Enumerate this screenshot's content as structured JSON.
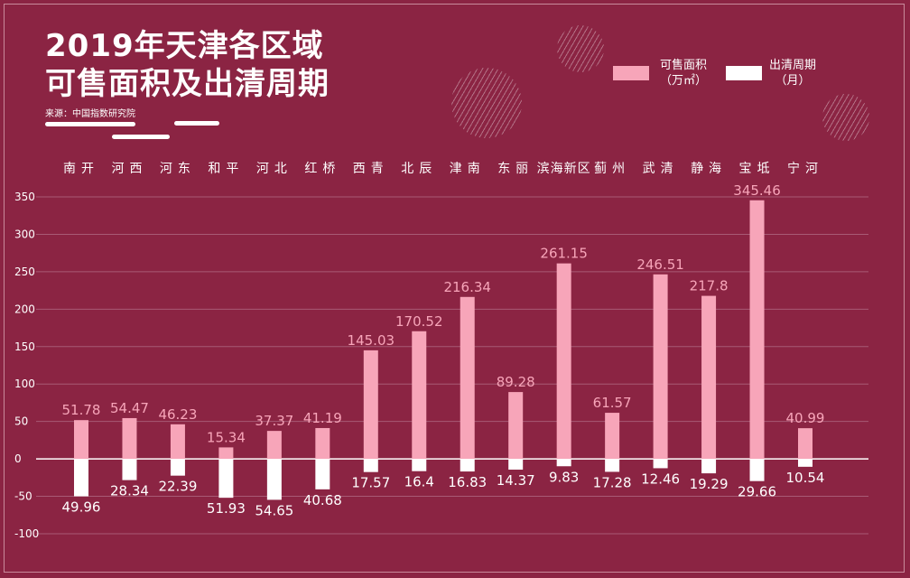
{
  "title": {
    "line1": "2019年天津各区域",
    "line2": "可售面积及出清周期"
  },
  "source": "来源：中国指数研究院",
  "legend": [
    {
      "name": "可售面积",
      "unit": "（万㎡）",
      "color": "#f7a5b9"
    },
    {
      "name": "出清周期",
      "unit": "（月）",
      "color": "#ffffff"
    }
  ],
  "chart_data": {
    "type": "bar",
    "categories": [
      "南开",
      "河西",
      "河东",
      "和平",
      "河北",
      "红桥",
      "西青",
      "北辰",
      "津南",
      "东丽",
      "滨海新区",
      "蓟州",
      "武清",
      "静海",
      "宝坻",
      "宁河"
    ],
    "series": [
      {
        "name": "可售面积",
        "unit": "万㎡",
        "color": "#f7a5b9",
        "values": [
          51.78,
          54.47,
          46.23,
          15.34,
          37.37,
          41.19,
          145.03,
          170.52,
          216.34,
          89.28,
          261.15,
          61.57,
          246.51,
          217.8,
          345.46,
          40.99
        ]
      },
      {
        "name": "出清周期",
        "unit": "月",
        "color": "#ffffff",
        "values": [
          49.96,
          28.34,
          22.39,
          51.93,
          54.65,
          40.68,
          17.57,
          16.4,
          16.83,
          14.37,
          9.83,
          17.28,
          12.46,
          19.29,
          29.66,
          10.54
        ]
      }
    ],
    "yticks": [
      350,
      300,
      250,
      200,
      150,
      100,
      50,
      0,
      -50,
      -100
    ],
    "ylim": [
      -100,
      350
    ],
    "grid": true,
    "legend_position": "top-right"
  }
}
